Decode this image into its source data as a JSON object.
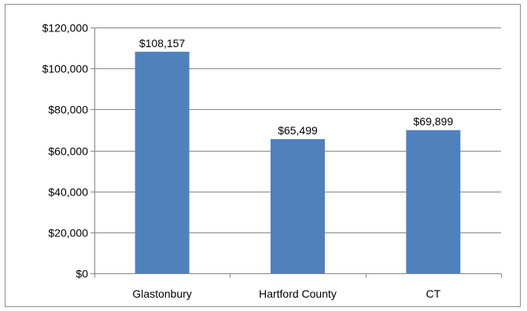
{
  "chart_data": {
    "type": "bar",
    "categories": [
      "Glastonbury",
      "Hartford County",
      "CT"
    ],
    "values": [
      108157,
      65499,
      69899
    ],
    "data_labels": [
      "$108,157",
      "$65,499",
      "$69,899"
    ],
    "title": "",
    "xlabel": "",
    "ylabel": "",
    "ylim": [
      0,
      120000
    ],
    "y_ticks": [
      0,
      20000,
      40000,
      60000,
      80000,
      100000,
      120000
    ],
    "y_tick_labels": [
      "$0",
      "$20,000",
      "$40,000",
      "$60,000",
      "$80,000",
      "$100,000",
      "$120,000"
    ],
    "grid": true,
    "legend": "none",
    "bar_color": "#4F81BD",
    "grid_color": "#868686"
  }
}
